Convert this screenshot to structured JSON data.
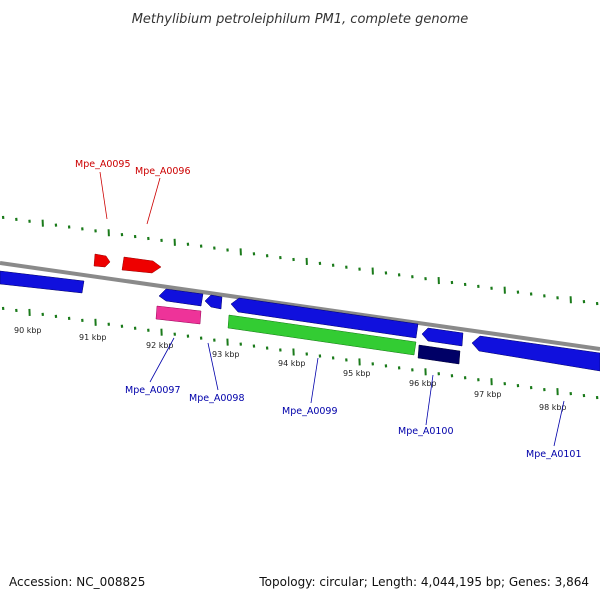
{
  "title": "Methylibium petroleiphilum PM1, complete genome",
  "footer": {
    "accession": "Accession: NC_008825",
    "summary": "Topology: circular; Length: 4,044,195 bp; Genes: 3,864"
  },
  "colors": {
    "backbone": "#8a8a8a",
    "tick": "#1a7a1a",
    "forward_label": "#cc0000",
    "reverse_label": "#0000aa"
  },
  "tick_labels": [
    "90 kbp",
    "91 kbp",
    "92 kbp",
    "93 kbp",
    "94 kbp",
    "95 kbp",
    "96 kbp",
    "97 kbp",
    "98 kbp"
  ],
  "labeled_genes": [
    {
      "name": "Mpe_A0095",
      "strand": "forward"
    },
    {
      "name": "Mpe_A0096",
      "strand": "forward"
    },
    {
      "name": "Mpe_A0097",
      "strand": "reverse"
    },
    {
      "name": "Mpe_A0098",
      "strand": "reverse"
    },
    {
      "name": "Mpe_A0099",
      "strand": "reverse"
    },
    {
      "name": "Mpe_A0100",
      "strand": "reverse"
    },
    {
      "name": "Mpe_A0101",
      "strand": "reverse"
    }
  ]
}
